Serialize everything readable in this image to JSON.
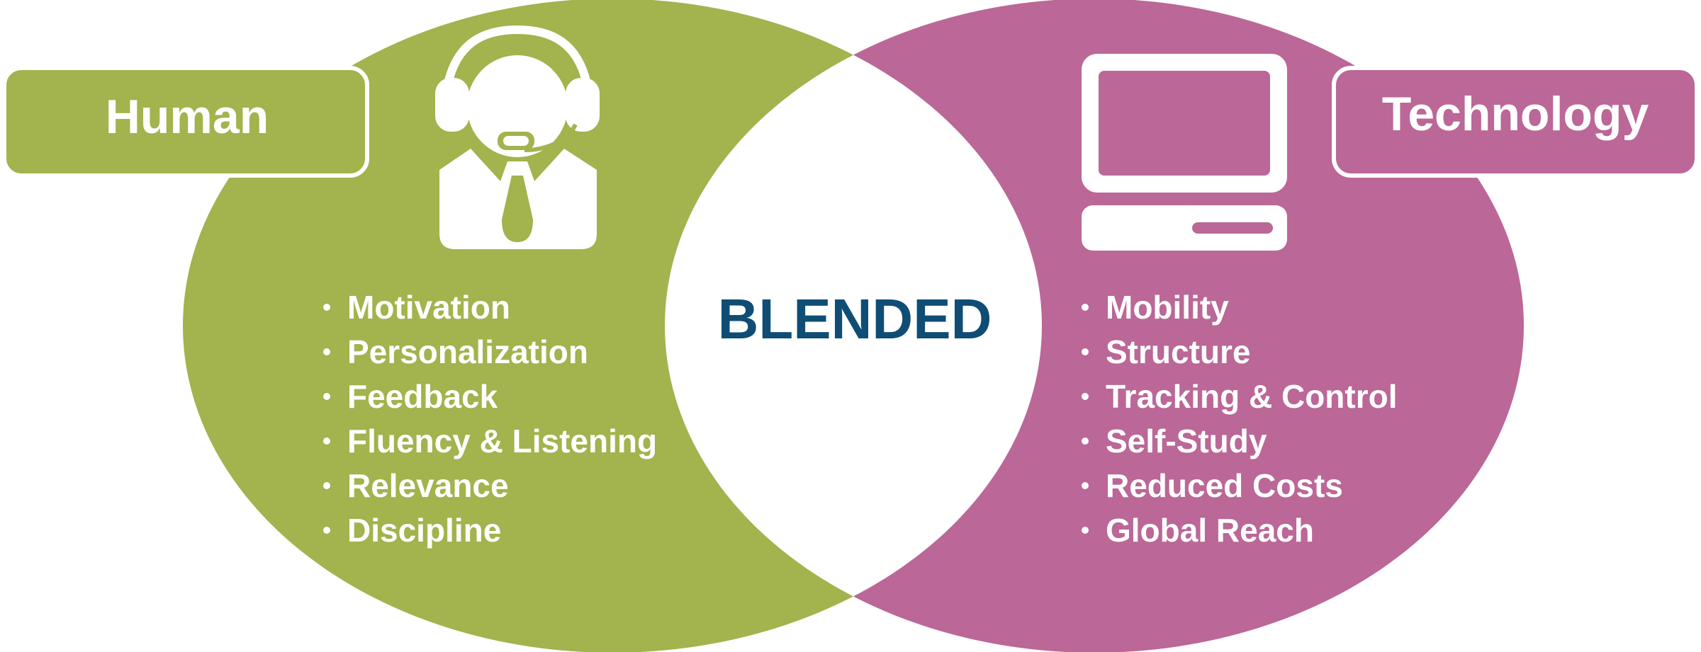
{
  "colors": {
    "human": "#a3b34d",
    "technology": "#bb6797",
    "center_text": "#0f4d75",
    "white": "#ffffff"
  },
  "human": {
    "label": "Human",
    "icon": "call-center-agent-headset-icon",
    "items": [
      "Motivation",
      "Personalization",
      "Feedback",
      "Fluency & Listening",
      "Relevance",
      "Discipline"
    ]
  },
  "technology": {
    "label": "Technology",
    "icon": "desktop-computer-icon",
    "items": [
      "Mobility",
      "Structure",
      "Tracking & Control",
      "Self-Study",
      "Reduced Costs",
      "Global Reach"
    ]
  },
  "center": {
    "label": "BLENDED"
  }
}
